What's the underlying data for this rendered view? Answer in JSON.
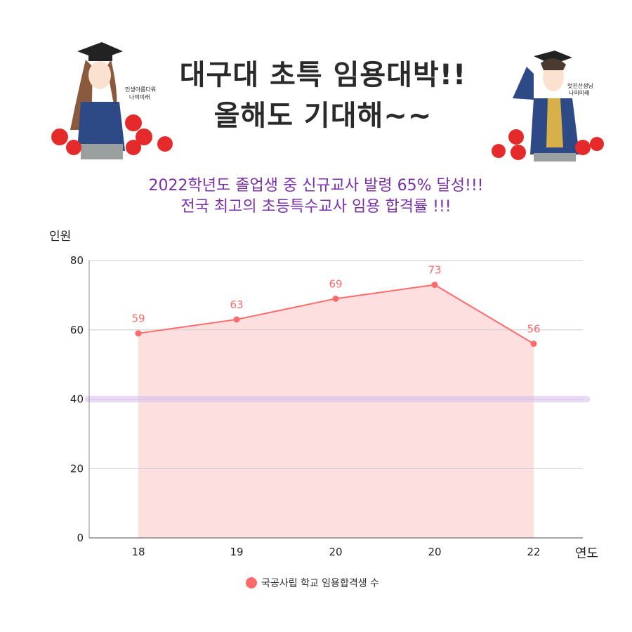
{
  "header": {
    "title_line1": "대구대 초특 임용대박!!",
    "title_line2": "올해도 기대해~~",
    "subtitle_line1": "2022학년도 졸업생 중 신규교사 발령 65% 달성!!!",
    "subtitle_line2": "전국 최고의 초등특수교사 임용 합격률 !!!"
  },
  "colors": {
    "series": "#ff6b6b",
    "fill": "#fddfe0",
    "subtitle": "#7a30a8",
    "highlight_line": "#d9c2ec"
  },
  "chart_data": {
    "type": "area",
    "categories": [
      "18",
      "19",
      "20",
      "20",
      "22"
    ],
    "series": [
      {
        "name": "국공사립 학교 임용합격생 수",
        "values": [
          59,
          63,
          69,
          73,
          56
        ]
      }
    ],
    "ylabel": "인원",
    "xlabel": "연도",
    "ylim": [
      0,
      80
    ],
    "yticks": [
      0,
      20,
      40,
      60,
      80
    ],
    "grid": true,
    "highlight_y": 40,
    "legend": "bottom"
  }
}
